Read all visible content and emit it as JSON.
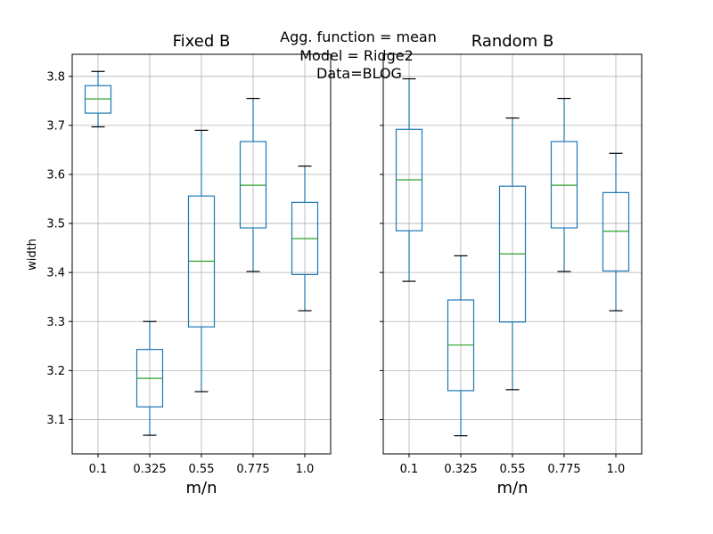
{
  "suptitle": [
    "Agg. function = mean",
    "Model = Ridge2",
    "Data=BLOG"
  ],
  "y_label": "width",
  "chart_data": [
    {
      "type": "box",
      "title": "Fixed B",
      "xlabel": "m/n",
      "ylabel": "width",
      "ylim": [
        3.03,
        3.845
      ],
      "yticks": [
        3.1,
        3.2,
        3.3,
        3.4,
        3.5,
        3.6,
        3.7,
        3.8
      ],
      "categories": [
        "0.1",
        "0.325",
        "0.55",
        "0.775",
        "1.0"
      ],
      "grid": true,
      "boxes": [
        {
          "whislo": 3.697,
          "q1": 3.725,
          "med": 3.754,
          "q3": 3.781,
          "whishi": 3.81
        },
        {
          "whislo": 3.068,
          "q1": 3.126,
          "med": 3.184,
          "q3": 3.243,
          "whishi": 3.3
        },
        {
          "whislo": 3.157,
          "q1": 3.289,
          "med": 3.423,
          "q3": 3.556,
          "whishi": 3.69
        },
        {
          "whislo": 3.402,
          "q1": 3.491,
          "med": 3.578,
          "q3": 3.667,
          "whishi": 3.755
        },
        {
          "whislo": 3.322,
          "q1": 3.396,
          "med": 3.469,
          "q3": 3.543,
          "whishi": 3.617
        }
      ]
    },
    {
      "type": "box",
      "title": "Random B",
      "xlabel": "m/n",
      "ylabel": "",
      "ylim": [
        3.03,
        3.845
      ],
      "yticks": [
        3.1,
        3.2,
        3.3,
        3.4,
        3.5,
        3.6,
        3.7,
        3.8
      ],
      "categories": [
        "0.1",
        "0.325",
        "0.55",
        "0.775",
        "1.0"
      ],
      "grid": true,
      "boxes": [
        {
          "whislo": 3.382,
          "q1": 3.485,
          "med": 3.589,
          "q3": 3.692,
          "whishi": 3.795
        },
        {
          "whislo": 3.067,
          "q1": 3.159,
          "med": 3.252,
          "q3": 3.344,
          "whishi": 3.434
        },
        {
          "whislo": 3.161,
          "q1": 3.299,
          "med": 3.438,
          "q3": 3.576,
          "whishi": 3.715
        },
        {
          "whislo": 3.402,
          "q1": 3.491,
          "med": 3.578,
          "q3": 3.667,
          "whishi": 3.755
        },
        {
          "whislo": 3.322,
          "q1": 3.403,
          "med": 3.484,
          "q3": 3.563,
          "whishi": 3.643
        }
      ]
    }
  ],
  "colors": {
    "box": "#1f77b4",
    "median": "#2ca02c",
    "whisker_cap": "#000000",
    "grid": "#b0b0b0"
  }
}
